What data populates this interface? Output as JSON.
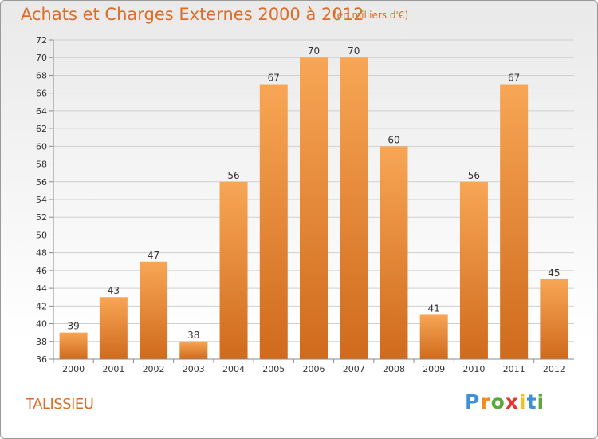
{
  "header": {
    "title": "Achats et Charges Externes 2000 à 2012",
    "subtitle": "(en milliers d'€)"
  },
  "footer": {
    "commune": "TALISSIEU",
    "logo": [
      "P",
      "r",
      "o",
      "x",
      "i",
      "t",
      "i"
    ],
    "logo_colors": [
      "#3c8fd8",
      "#f28a1e",
      "#5aa83a",
      "#e8322e",
      "#f2c21e",
      "#3c8fd8",
      "#5aa83a"
    ]
  },
  "colors": {
    "bar_top": "#f7a655",
    "bar_bottom": "#d06a1c",
    "text": "#d96d2a",
    "axis_text": "#333333",
    "grid": "#cfcfcf"
  },
  "chart_data": {
    "type": "bar",
    "categories": [
      "2000",
      "2001",
      "2002",
      "2003",
      "2004",
      "2005",
      "2006",
      "2007",
      "2008",
      "2009",
      "2010",
      "2011",
      "2012"
    ],
    "values": [
      39,
      43,
      47,
      38,
      56,
      67,
      70,
      70,
      60,
      41,
      56,
      67,
      45
    ],
    "title": "Achats et Charges Externes 2000 à 2012",
    "subtitle": "(en milliers d'€)",
    "ylim": [
      36,
      72
    ],
    "yticks": [
      36,
      38,
      40,
      42,
      44,
      46,
      48,
      50,
      52,
      54,
      56,
      58,
      60,
      62,
      64,
      66,
      68,
      70,
      72
    ],
    "grid": true,
    "data_labels": true
  }
}
